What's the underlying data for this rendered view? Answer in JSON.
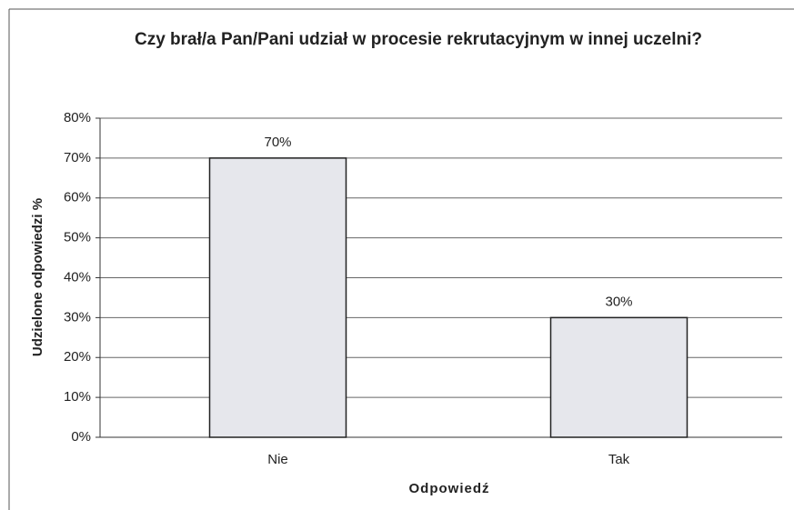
{
  "chart_data": {
    "type": "bar",
    "title": "Czy brał/a  Pan/Pani udział w procesie rekrutacyjnym w innej uczelni?",
    "x_label": "Odpowiedź",
    "y_label": "Udzielone odpowiedzi %",
    "categories": [
      "Nie",
      "Tak"
    ],
    "values": [
      70,
      30
    ],
    "value_labels": [
      "70%",
      "30%"
    ],
    "color": "#e6e7ec",
    "ylim": [
      0,
      80
    ],
    "yticks": [
      {
        "value": 0,
        "label": "0%"
      },
      {
        "value": 10,
        "label": "10%"
      },
      {
        "value": 20,
        "label": "20%"
      },
      {
        "value": 30,
        "label": "30%"
      },
      {
        "value": 40,
        "label": "40%"
      },
      {
        "value": 50,
        "label": "50%"
      },
      {
        "value": 60,
        "label": "60%"
      },
      {
        "value": 70,
        "label": "70%"
      },
      {
        "value": 80,
        "label": "80%"
      }
    ],
    "grid": true
  }
}
